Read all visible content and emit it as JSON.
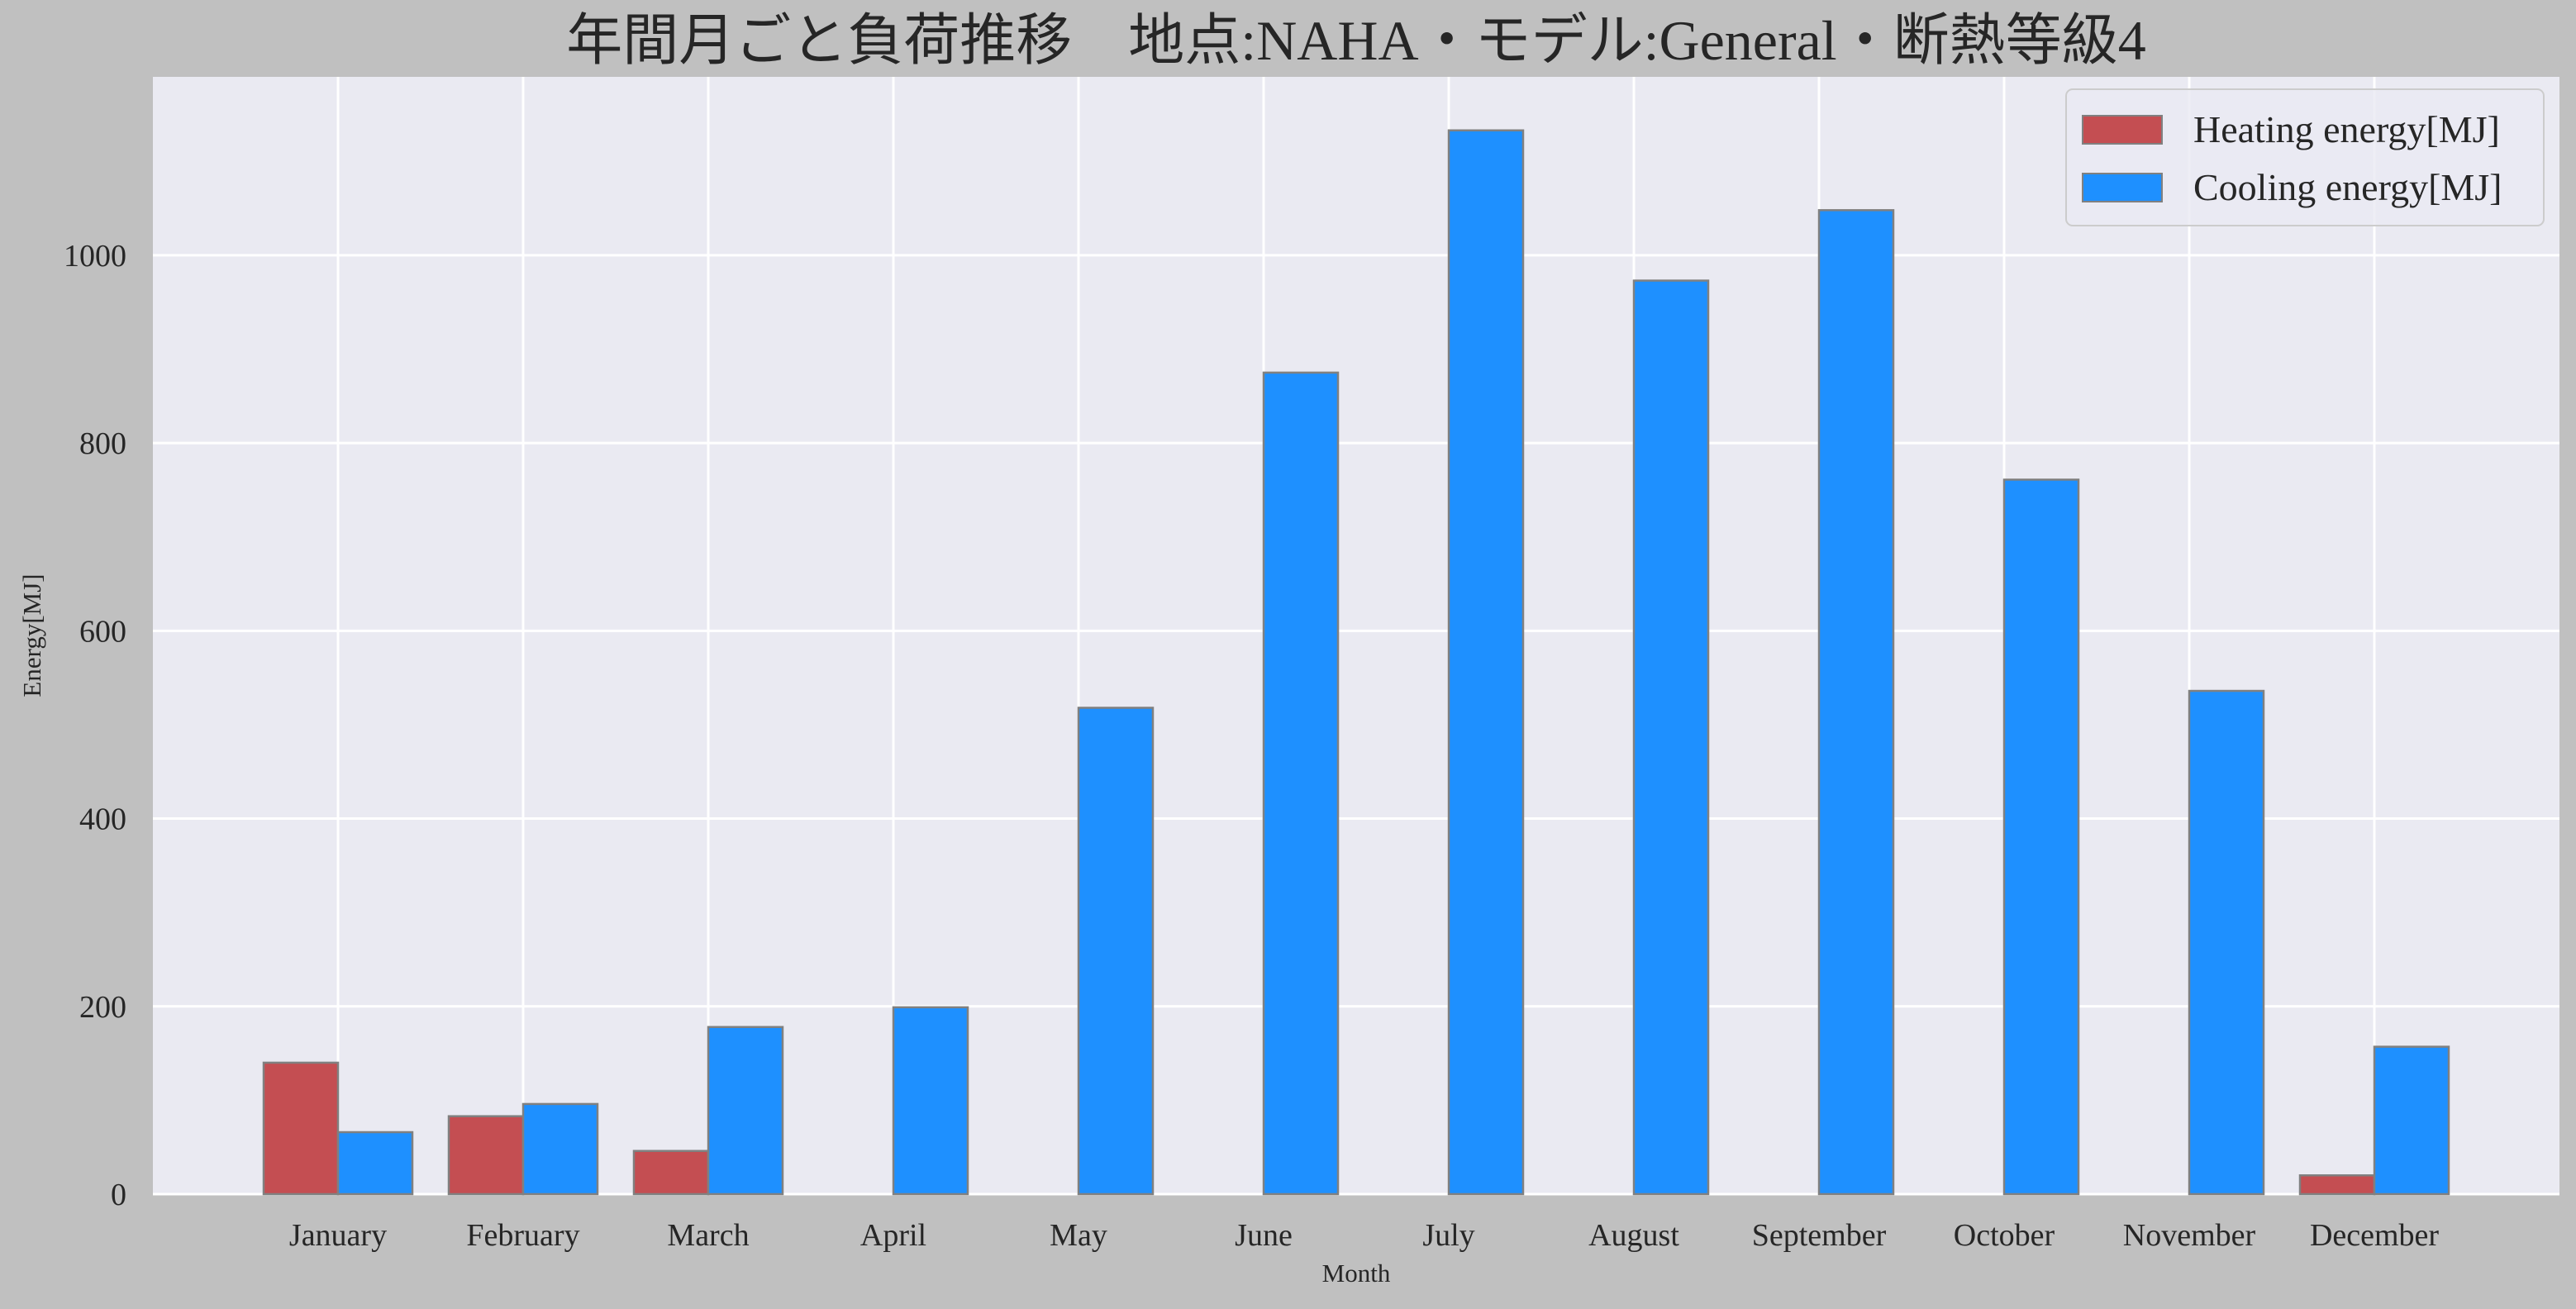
{
  "chart_data": {
    "type": "bar",
    "title": "年間月ごと負荷推移　地点:NAHA・モデル:General・断熱等級4",
    "xlabel": "Month",
    "ylabel": "Energy[MJ]",
    "categories": [
      "January",
      "February",
      "March",
      "April",
      "May",
      "June",
      "July",
      "August",
      "September",
      "October",
      "November",
      "December"
    ],
    "yticks": [
      0,
      200,
      400,
      600,
      800,
      1000
    ],
    "ylim": [
      0,
      1190
    ],
    "grid": true,
    "legend_position": "top-right",
    "series": [
      {
        "name": "Heating energy[MJ]",
        "color": "#c44e52",
        "values": [
          140,
          83,
          46,
          0,
          0,
          0,
          0,
          0,
          0,
          0,
          0,
          20
        ]
      },
      {
        "name": "Cooling energy[MJ]",
        "color": "#1e90ff",
        "values": [
          66,
          96,
          178,
          199,
          518,
          875,
          1133,
          973,
          1048,
          761,
          536,
          157
        ]
      }
    ],
    "colors": {
      "figure_background": "#c0c0c0",
      "plot_background": "#eaeaf2",
      "grid": "#ffffff",
      "bar_edge": "#808080"
    }
  }
}
